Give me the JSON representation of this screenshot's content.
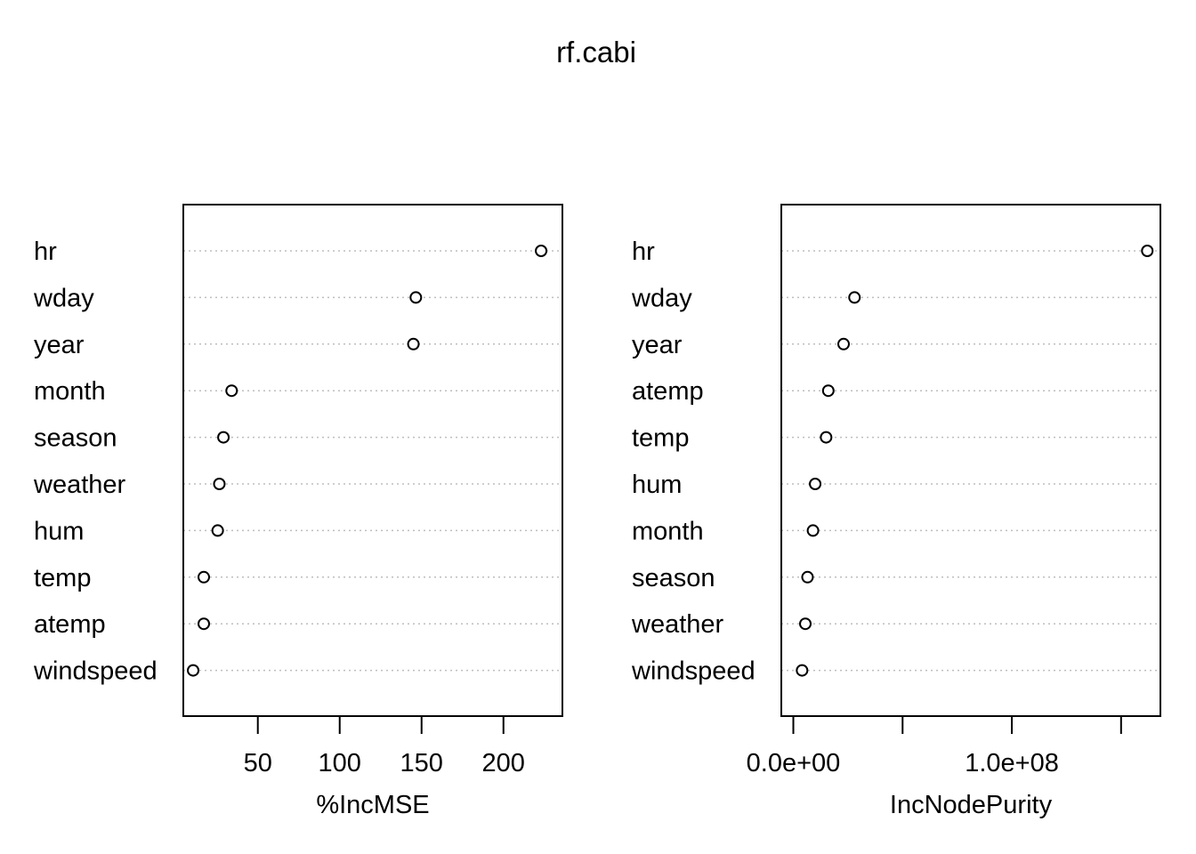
{
  "chart_data": {
    "title": "rf.cabi",
    "panels": [
      {
        "type": "scatter",
        "xlabel": "%IncMSE",
        "xlim": [
          4.5,
          236
        ],
        "ticks": [
          50,
          100,
          150,
          200
        ],
        "tick_labels": [
          "50",
          "100",
          "150",
          "200"
        ],
        "categories": [
          "hr",
          "wday",
          "year",
          "month",
          "season",
          "weather",
          "hum",
          "temp",
          "atemp",
          "windspeed"
        ],
        "values": [
          223,
          146.5,
          145,
          34,
          29,
          26.5,
          25.5,
          17,
          17,
          10.5
        ],
        "grid": "dotted horizontal"
      },
      {
        "type": "scatter",
        "xlabel": "IncNodePurity",
        "xlim": [
          -5500000,
          168000000
        ],
        "ticks": [
          0,
          50000000,
          100000000,
          150000000
        ],
        "tick_labels": [
          "0.0e+00",
          "",
          "1.0e+08",
          ""
        ],
        "categories": [
          "hr",
          "wday",
          "year",
          "atemp",
          "temp",
          "hum",
          "month",
          "season",
          "weather",
          "windspeed"
        ],
        "values": [
          162000000,
          28000000,
          23000000,
          16000000,
          15000000,
          10000000,
          9000000,
          6500000,
          5500000,
          4000000
        ],
        "grid": "dotted horizontal"
      }
    ]
  }
}
